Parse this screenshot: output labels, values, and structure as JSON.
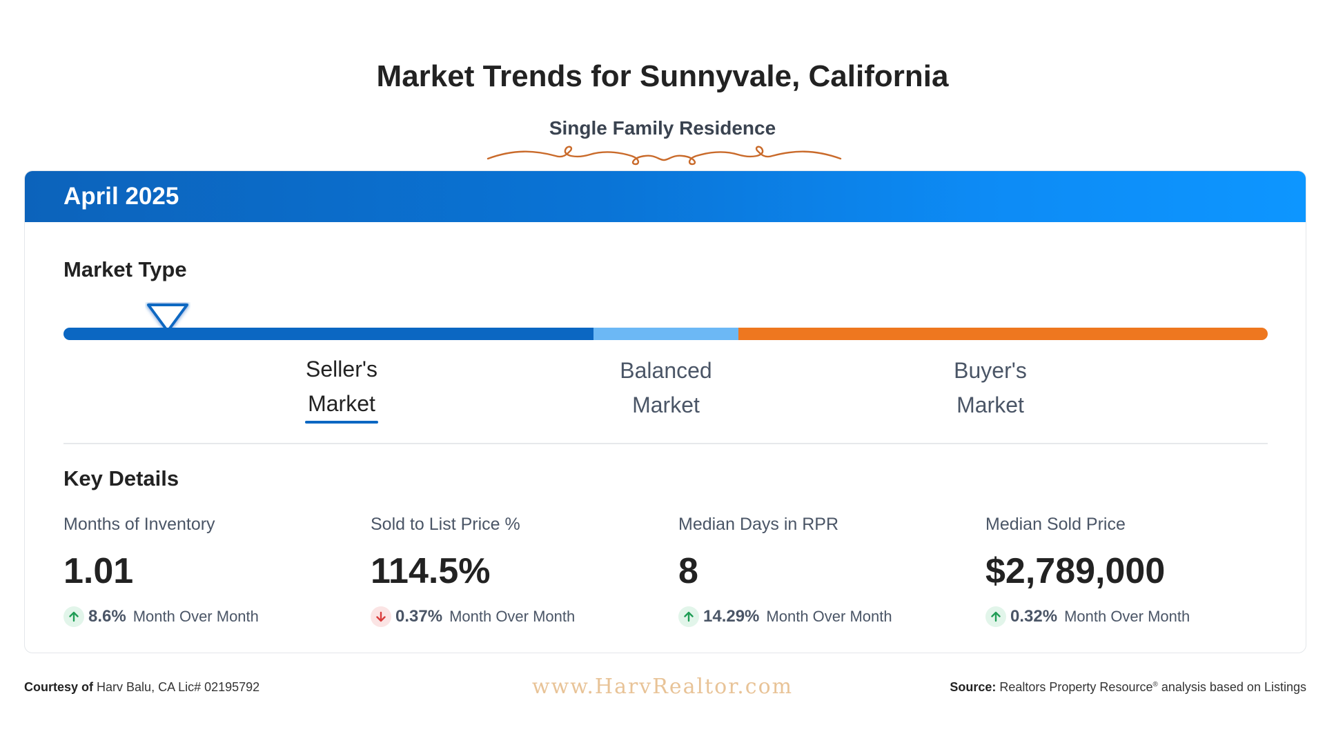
{
  "header": {
    "title": "Market Trends for Sunnyvale, California",
    "subtitle": "Single Family Residence"
  },
  "card": {
    "period": "April 2025",
    "market_type": {
      "title": "Market Type",
      "indicator_value": 0.087,
      "labels": {
        "seller_line1": "Seller's",
        "seller_line2": "Market",
        "balanced_line1": "Balanced",
        "balanced_line2": "Market",
        "buyer_line1": "Buyer's",
        "buyer_line2": "Market"
      },
      "colors": {
        "seller": "#0b67c2",
        "balanced": "#6cb8f5",
        "buyer": "#ee771f"
      },
      "active": "Seller's Market"
    },
    "key_details": {
      "title": "Key Details",
      "metrics": [
        {
          "name": "Months of Inventory",
          "value": "1.01",
          "direction": "up",
          "change": "8.6%",
          "period": "Month Over Month"
        },
        {
          "name": "Sold to List Price %",
          "value": "114.5%",
          "direction": "down",
          "change": "0.37%",
          "period": "Month Over Month"
        },
        {
          "name": "Median Days in RPR",
          "value": "8",
          "direction": "up",
          "change": "14.29%",
          "period": "Month Over Month"
        },
        {
          "name": "Median Sold Price",
          "value": "$2,789,000",
          "direction": "up",
          "change": "0.32%",
          "period": "Month Over Month"
        }
      ]
    }
  },
  "footer": {
    "courtesy_label": "Courtesy of",
    "courtesy_text": "Harv Balu, CA Lic# 02195792",
    "website": "www.HarvRealtor.com",
    "source_label": "Source:",
    "source_text": "Realtors Property Resource",
    "source_reg": "®",
    "source_suffix": "analysis based on Listings"
  },
  "colors": {
    "arrow_up": "#1f9d55",
    "arrow_down": "#d93b3b",
    "flourish": "#c96a2a"
  }
}
